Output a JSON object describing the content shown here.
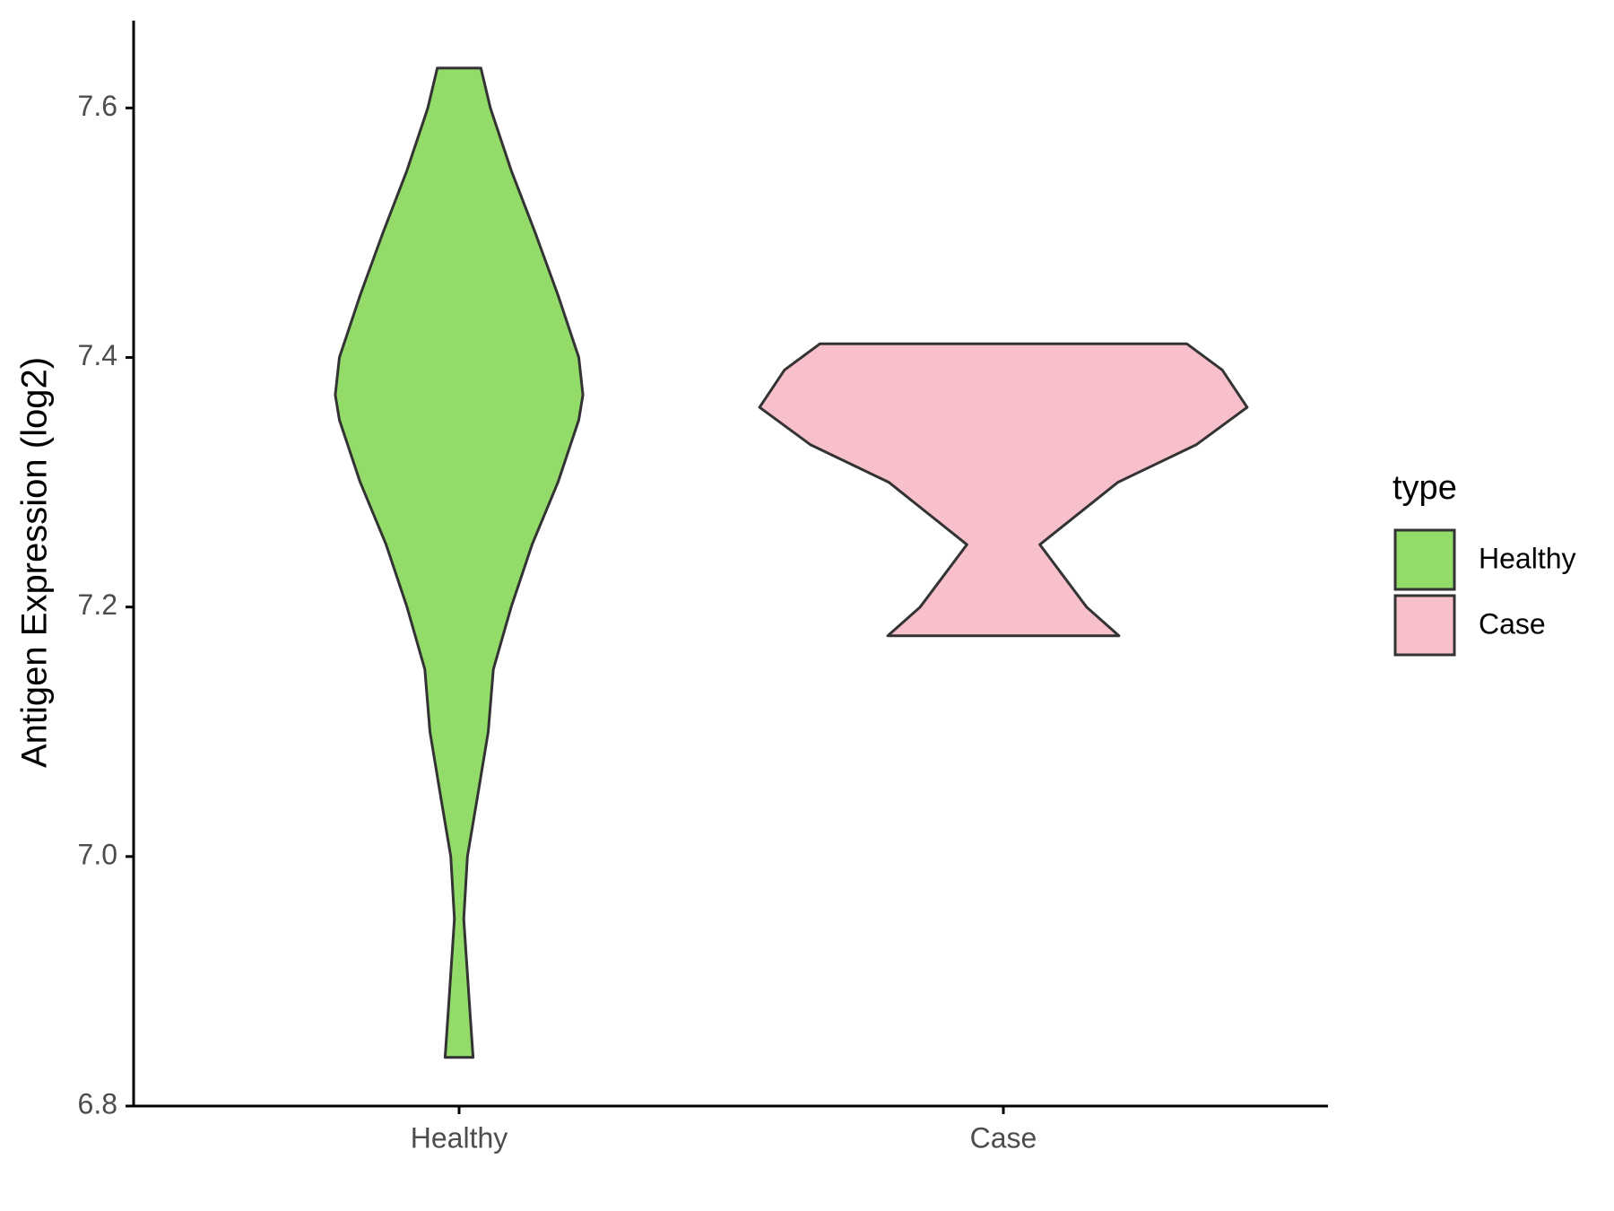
{
  "chart_data": {
    "type": "violin",
    "y_label": "Antigen Expression (log2)",
    "categories": [
      "Healthy",
      "Case"
    ],
    "legend_title": "type",
    "series": [
      {
        "name": "Healthy",
        "color": "#93dc6a",
        "y": [
          6.839,
          6.88,
          6.95,
          7.0,
          7.05,
          7.1,
          7.15,
          7.2,
          7.25,
          7.3,
          7.35,
          7.37,
          7.4,
          7.45,
          7.5,
          7.55,
          7.6,
          7.632
        ],
        "density": [
          0.057,
          0.043,
          0.019,
          0.034,
          0.077,
          0.119,
          0.14,
          0.213,
          0.298,
          0.404,
          0.489,
          0.506,
          0.489,
          0.404,
          0.311,
          0.213,
          0.128,
          0.089
        ]
      },
      {
        "name": "Case",
        "color": "#f7c0cb",
        "y": [
          7.177,
          7.2,
          7.25,
          7.3,
          7.33,
          7.36,
          7.39,
          7.411
        ],
        "density": [
          0.472,
          0.34,
          0.149,
          0.468,
          0.787,
          0.996,
          0.894,
          0.749
        ]
      }
    ],
    "ylim": [
      6.8,
      7.67
    ],
    "yticks": [
      {
        "value": 6.8,
        "label": "6.8"
      },
      {
        "value": 7.0,
        "label": "7.0"
      },
      {
        "value": 7.2,
        "label": "7.2"
      },
      {
        "value": 7.4,
        "label": "7.4"
      },
      {
        "value": 7.6,
        "label": "7.6"
      }
    ],
    "grid": false,
    "legend_position": "right"
  }
}
